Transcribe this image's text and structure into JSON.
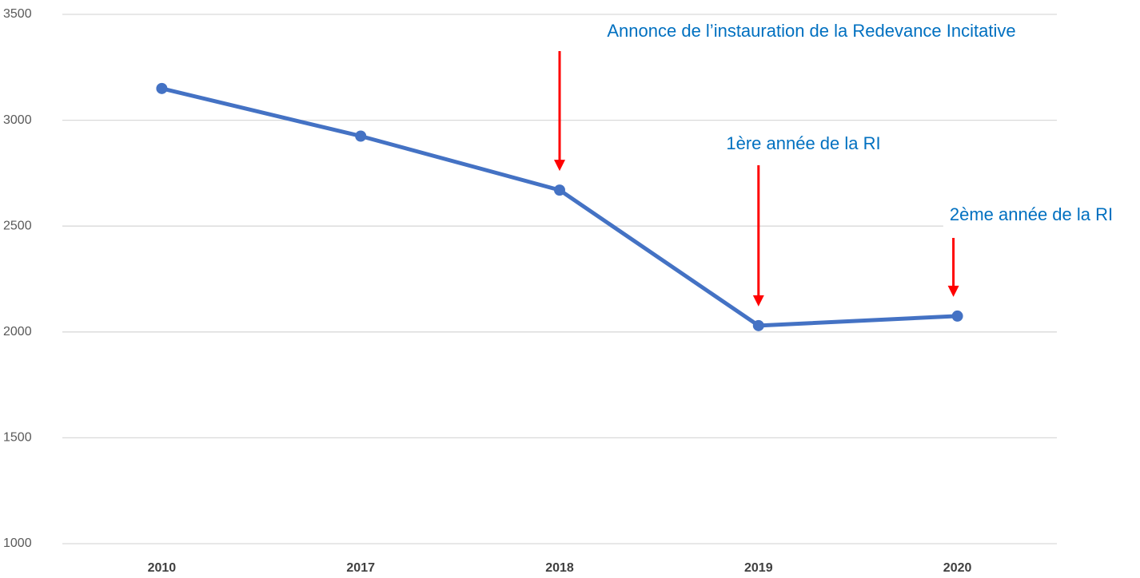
{
  "chart_data": {
    "type": "line",
    "categories": [
      "2010",
      "2017",
      "2018",
      "2019",
      "2020"
    ],
    "series": [
      {
        "color": "#4472c4",
        "values": [
          3150,
          2925,
          2670,
          2030,
          2075
        ]
      }
    ],
    "ylim": [
      1000,
      3500
    ],
    "yticks": [
      1000,
      1500,
      2000,
      2500,
      3000,
      3500
    ],
    "grid": true,
    "annotations": [
      {
        "text": "Annonce de l’instauration de la Redevance Incitative",
        "category": "2018",
        "color": "#0070c0",
        "arrow_color": "#ff0000"
      },
      {
        "text": "1ère année de la RI",
        "category": "2019",
        "color": "#0070c0",
        "arrow_color": "#ff0000"
      },
      {
        "text": "2ème année de la RI",
        "category": "2020",
        "color": "#0070c0",
        "arrow_color": "#ff0000"
      }
    ]
  }
}
